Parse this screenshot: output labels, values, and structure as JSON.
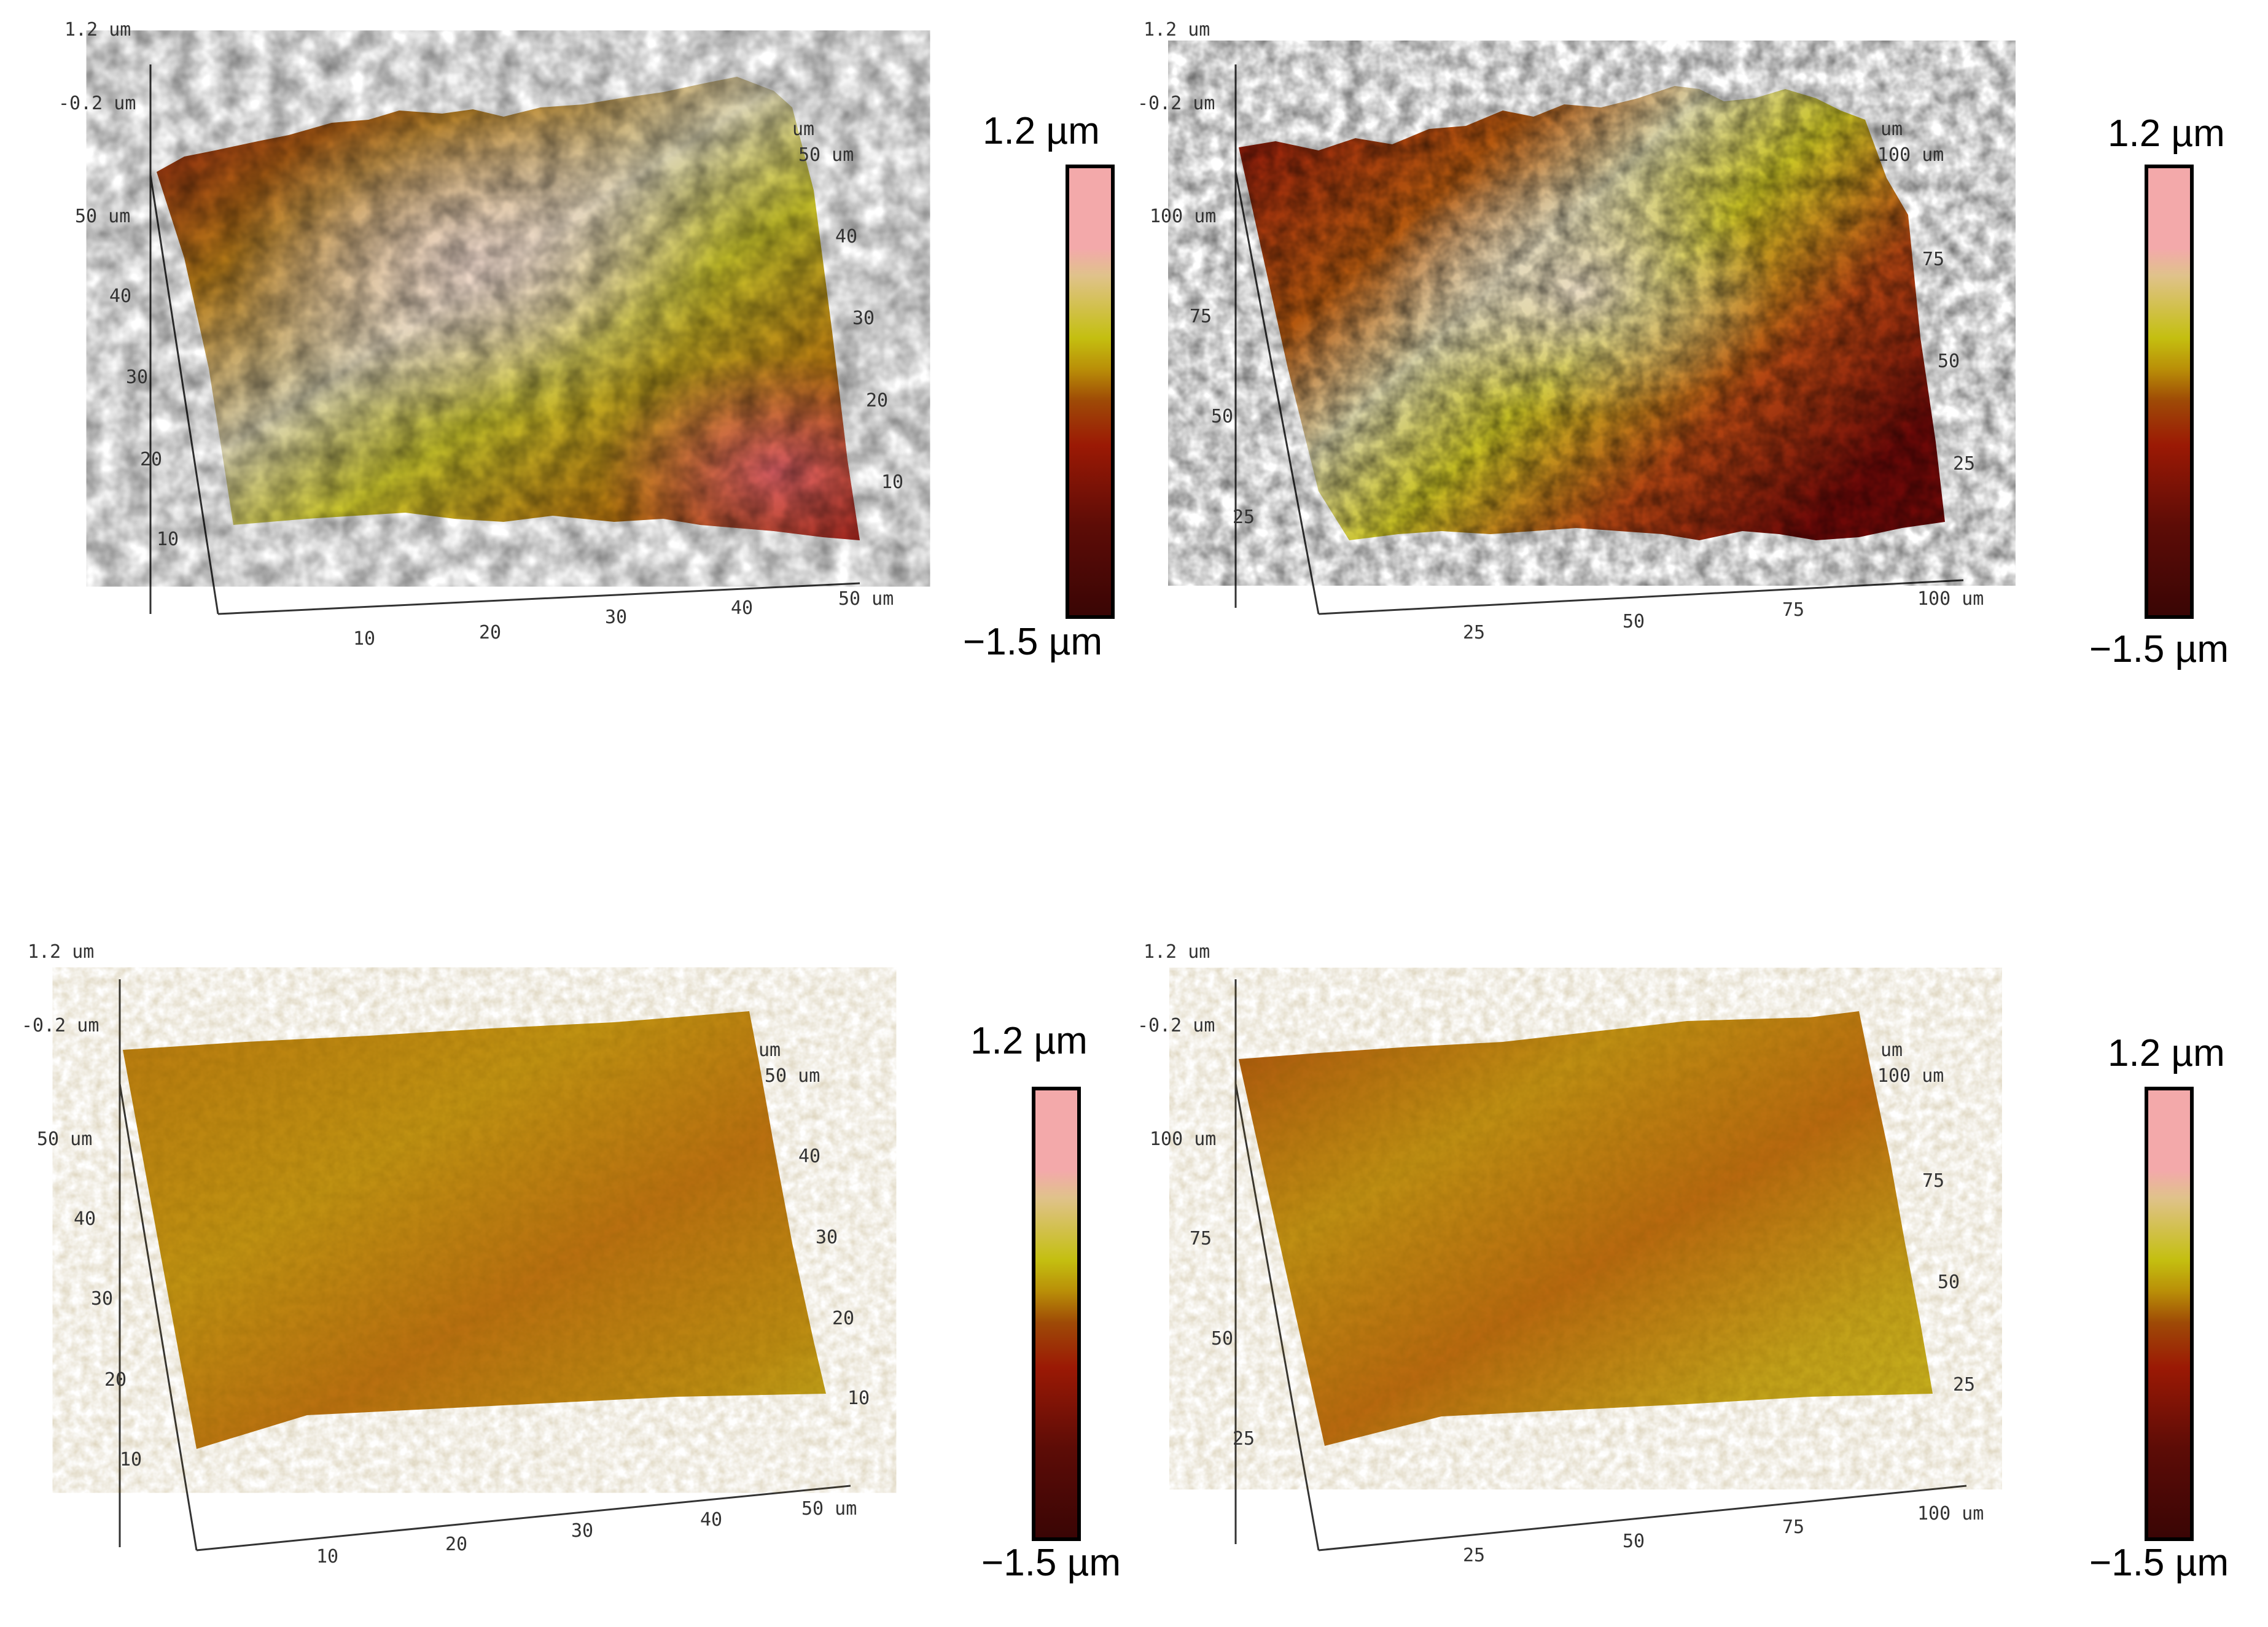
{
  "panels": [
    {
      "id": "top-left",
      "surface": "rough",
      "z_ticks": [
        "1.2 um",
        "-0.2 um"
      ],
      "y_ticks": [
        "50 um",
        "40",
        "30",
        "20",
        "10"
      ],
      "x_ticks": [
        "10",
        "20",
        "30",
        "40",
        "50 um"
      ],
      "right_ticks": [
        "um",
        "50 um",
        "40",
        "30",
        "20",
        "10"
      ],
      "colorbar": {
        "max": "1.2 µm",
        "min": "−1.5 µm"
      }
    },
    {
      "id": "top-right",
      "surface": "rough",
      "z_ticks": [
        "1.2 um",
        "-0.2 um"
      ],
      "y_ticks": [
        "100 um",
        "75",
        "50",
        "25"
      ],
      "x_ticks": [
        "25",
        "50",
        "75",
        "100 um"
      ],
      "right_ticks": [
        "um",
        "100 um",
        "75",
        "50",
        "25"
      ],
      "colorbar": {
        "max": "1.2 µm",
        "min": "−1.5 µm"
      }
    },
    {
      "id": "bottom-left",
      "surface": "smooth",
      "z_ticks": [
        "1.2 um",
        "-0.2 um"
      ],
      "y_ticks": [
        "50 um",
        "40",
        "30",
        "20",
        "10"
      ],
      "x_ticks": [
        "10",
        "20",
        "30",
        "40",
        "50 um"
      ],
      "right_ticks": [
        "um",
        "50 um",
        "40",
        "30",
        "20",
        "10"
      ],
      "colorbar": {
        "max": "1.2 µm",
        "min": "−1.5 µm"
      }
    },
    {
      "id": "bottom-right",
      "surface": "smooth",
      "z_ticks": [
        "1.2 um",
        "-0.2 um"
      ],
      "y_ticks": [
        "100 um",
        "75",
        "50",
        "25"
      ],
      "x_ticks": [
        "25",
        "50",
        "75",
        "100 um"
      ],
      "right_ticks": [
        "um",
        "100 um",
        "75",
        "50",
        "25"
      ],
      "colorbar": {
        "max": "1.2 µm",
        "min": "−1.5 µm"
      }
    }
  ]
}
